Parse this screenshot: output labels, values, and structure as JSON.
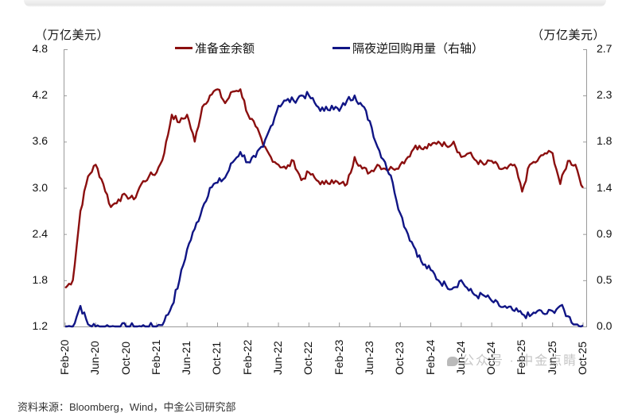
{
  "chart": {
    "left_unit": "（万亿美元）",
    "right_unit": "（万亿美元）",
    "legend": [
      {
        "label": "准备金余额",
        "color": "#8b0f0f"
      },
      {
        "label": "隔夜逆回购用量（右轴）",
        "color": "#101585"
      }
    ],
    "left_ticks": [
      "4.8",
      "4.2",
      "3.6",
      "3.0",
      "2.4",
      "1.8",
      "1.2"
    ],
    "right_ticks": [
      "2.7",
      "2.3",
      "1.8",
      "1.4",
      "0.9",
      "0.5",
      "0.0"
    ],
    "x_ticks": [
      "Feb-20",
      "Jun-20",
      "Oct-20",
      "Feb-21",
      "Jun-21",
      "Oct-21",
      "Feb-22",
      "Jun-22",
      "Oct-22",
      "Feb-23",
      "Jun-23",
      "Oct-23",
      "Feb-24",
      "Jun-24",
      "Oct-24",
      "Feb-25",
      "Jun-25",
      "Oct-25"
    ],
    "source": "资料来源：Bloomberg，Wind，中金公司研究部",
    "watermark": "公众号 · 中金点睛"
  },
  "chart_data": {
    "type": "line",
    "title": "",
    "xlabel": "",
    "ylabel": "万亿美元",
    "y2label": "万亿美元",
    "ylim": [
      1.2,
      4.8
    ],
    "y2lim": [
      0.0,
      2.7
    ],
    "legend_position": "top",
    "grid": false,
    "x": [
      "Feb-20",
      "Mar-20",
      "Apr-20",
      "May-20",
      "Jun-20",
      "Jul-20",
      "Aug-20",
      "Sep-20",
      "Oct-20",
      "Nov-20",
      "Dec-20",
      "Jan-21",
      "Feb-21",
      "Mar-21",
      "Apr-21",
      "May-21",
      "Jun-21",
      "Jul-21",
      "Aug-21",
      "Sep-21",
      "Oct-21",
      "Nov-21",
      "Dec-21",
      "Jan-22",
      "Feb-22",
      "Mar-22",
      "Apr-22",
      "May-22",
      "Jun-22",
      "Jul-22",
      "Aug-22",
      "Sep-22",
      "Oct-22",
      "Nov-22",
      "Dec-22",
      "Jan-23",
      "Feb-23",
      "Mar-23",
      "Apr-23",
      "May-23",
      "Jun-23",
      "Jul-23",
      "Aug-23",
      "Sep-23",
      "Oct-23",
      "Nov-23",
      "Dec-23",
      "Jan-24",
      "Feb-24",
      "Mar-24",
      "Apr-24",
      "May-24",
      "Jun-24",
      "Jul-24",
      "Aug-24",
      "Sep-24",
      "Oct-24",
      "Nov-24",
      "Dec-24",
      "Jan-25",
      "Feb-25",
      "Mar-25",
      "Apr-25",
      "May-25",
      "Jun-25",
      "Jul-25",
      "Aug-25",
      "Sep-25",
      "Oct-25"
    ],
    "series": [
      {
        "name": "准备金余额",
        "axis": "left",
        "color": "#8b0f0f",
        "values": [
          1.7,
          1.8,
          2.7,
          3.15,
          3.3,
          3.05,
          2.75,
          2.85,
          2.9,
          2.85,
          3.05,
          3.15,
          3.2,
          3.45,
          3.95,
          3.85,
          3.95,
          3.6,
          4.05,
          4.2,
          4.28,
          4.1,
          4.25,
          4.28,
          3.95,
          3.8,
          3.55,
          3.4,
          3.3,
          3.25,
          3.35,
          3.1,
          3.2,
          3.1,
          3.05,
          3.1,
          3.05,
          3.05,
          3.4,
          3.25,
          3.2,
          3.3,
          3.25,
          3.25,
          3.3,
          3.4,
          3.55,
          3.5,
          3.55,
          3.6,
          3.55,
          3.6,
          3.4,
          3.45,
          3.35,
          3.3,
          3.35,
          3.25,
          3.25,
          3.3,
          2.95,
          3.3,
          3.35,
          3.45,
          3.45,
          3.05,
          3.35,
          3.3,
          3.0
        ]
      },
      {
        "name": "隔夜逆回购用量（右轴）",
        "axis": "right",
        "color": "#101585",
        "values": [
          0.0,
          0.0,
          0.2,
          0.02,
          0.0,
          0.0,
          0.0,
          0.0,
          0.0,
          0.0,
          0.0,
          0.0,
          0.0,
          0.05,
          0.2,
          0.45,
          0.75,
          0.95,
          1.15,
          1.35,
          1.4,
          1.45,
          1.6,
          1.7,
          1.6,
          1.65,
          1.75,
          1.95,
          2.15,
          2.2,
          2.2,
          2.25,
          2.25,
          2.15,
          2.1,
          2.15,
          2.1,
          2.2,
          2.25,
          2.15,
          2.0,
          1.75,
          1.6,
          1.4,
          1.1,
          0.9,
          0.75,
          0.6,
          0.55,
          0.45,
          0.4,
          0.38,
          0.45,
          0.35,
          0.3,
          0.3,
          0.25,
          0.2,
          0.18,
          0.15,
          0.12,
          0.1,
          0.15,
          0.12,
          0.15,
          0.2,
          0.1,
          0.02,
          0.01
        ]
      }
    ]
  }
}
